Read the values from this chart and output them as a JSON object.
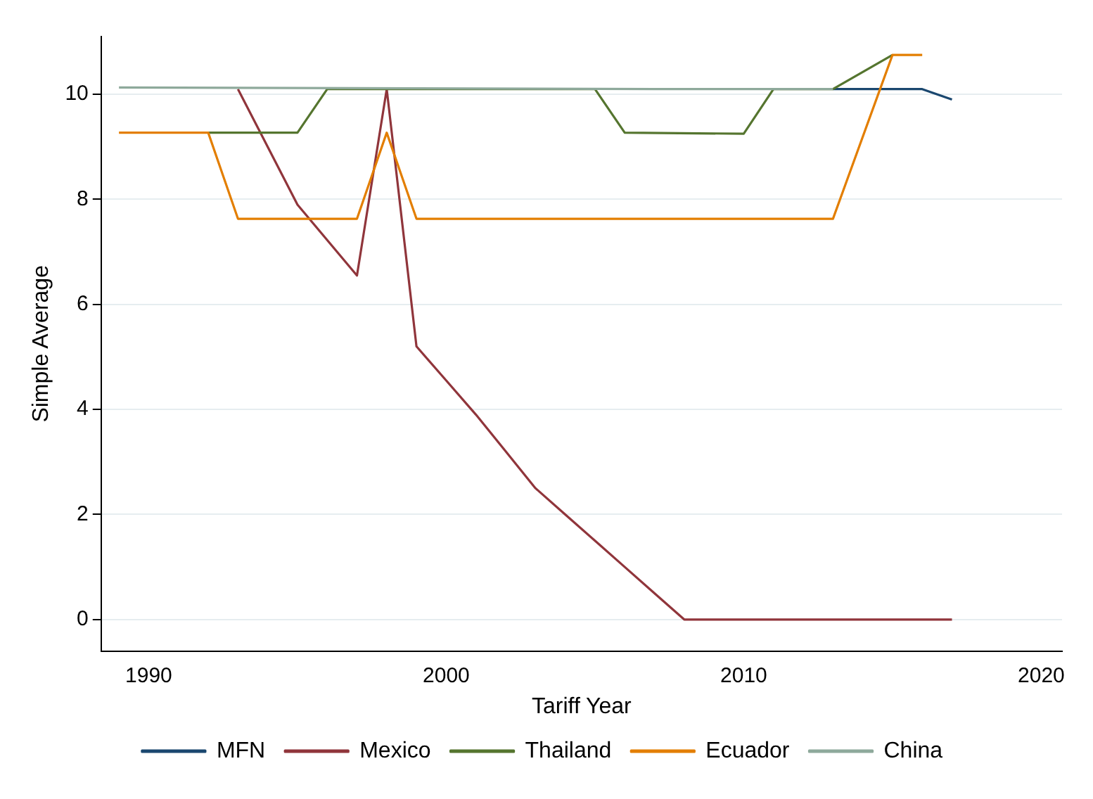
{
  "chart_data": {
    "type": "line",
    "xlabel": "Tariff Year",
    "ylabel": "Simple Average",
    "xlim": [
      1988.4,
      2020.7
    ],
    "xticks": [
      1990,
      2000,
      2010,
      2020
    ],
    "ylim": [
      -0.6,
      11.1
    ],
    "yticks": [
      0,
      2,
      4,
      6,
      8,
      10
    ],
    "grid": "y",
    "legend": "bottom",
    "marker": "none",
    "line_style": "solid",
    "series": [
      {
        "name": "MFN",
        "color": "#1a476f",
        "x": [
          2013,
          2016,
          2017
        ],
        "values": [
          10.1,
          10.1,
          9.9
        ]
      },
      {
        "name": "Mexico",
        "color": "#90353b",
        "x": [
          1993,
          1995,
          1997,
          1998,
          1999,
          2000,
          2001,
          2002,
          2003,
          2004,
          2005,
          2006,
          2007,
          2008,
          2017
        ],
        "values": [
          10.1,
          7.9,
          6.55,
          10.1,
          5.2,
          4.55,
          3.9,
          3.2,
          2.5,
          2.0,
          1.5,
          1.0,
          0.5,
          0,
          0
        ]
      },
      {
        "name": "Thailand",
        "color": "#55752f",
        "x": [
          1992,
          1995,
          1996,
          2005,
          2006,
          2010,
          2011,
          2013,
          2015
        ],
        "values": [
          9.27,
          9.27,
          10.1,
          10.1,
          9.27,
          9.25,
          10.1,
          10.1,
          10.75
        ]
      },
      {
        "name": "Ecuador",
        "color": "#e37e00",
        "x": [
          1989,
          1992,
          1993,
          1997,
          1998,
          1999,
          2013,
          2015,
          2016
        ],
        "values": [
          9.27,
          9.27,
          7.63,
          7.63,
          9.27,
          7.63,
          7.63,
          10.75,
          10.75
        ]
      },
      {
        "name": "China",
        "color": "#8ea99b",
        "x": [
          1989,
          2007,
          2013
        ],
        "values": [
          10.13,
          10.1,
          10.1
        ]
      }
    ]
  }
}
